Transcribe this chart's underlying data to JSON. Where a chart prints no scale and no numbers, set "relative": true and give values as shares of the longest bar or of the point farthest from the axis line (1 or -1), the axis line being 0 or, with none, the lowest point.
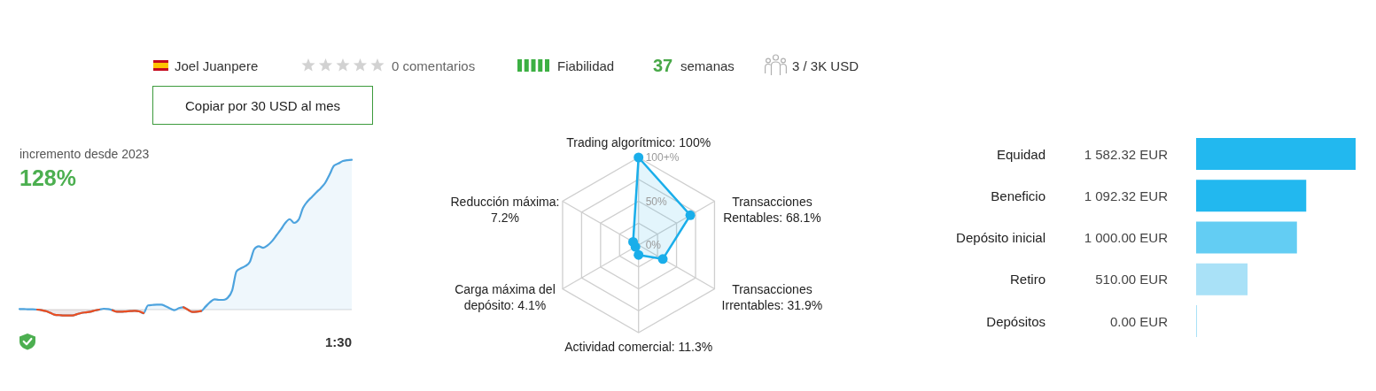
{
  "chart_data": [
    {
      "type": "other",
      "annotations": [
        "Joel Juanpere",
        "0 comentarios",
        "Fiabilidad",
        "37",
        "semanas",
        "3 / 3K USD",
        "Copiar por 30 USD al mes"
      ]
    },
    {
      "type": "line",
      "title": "incremento desde 2023",
      "subtitle": "128%",
      "annotations": [
        "1:30"
      ],
      "relative": true,
      "tick_labels": false,
      "categories": [
        null,
        null,
        null,
        null,
        null,
        null,
        null,
        null,
        null,
        null,
        null,
        null,
        null,
        null,
        null,
        null,
        null,
        null,
        null,
        null,
        null,
        null,
        null,
        null,
        null,
        null,
        null,
        null,
        null,
        null,
        null,
        null,
        null,
        null,
        null,
        null,
        null,
        null,
        null,
        null,
        null,
        null,
        null,
        null,
        null,
        null,
        null,
        null,
        null,
        null,
        null,
        null,
        null,
        null,
        null,
        null,
        null,
        null,
        null,
        null,
        null,
        null,
        null,
        null,
        null,
        null,
        null,
        null,
        null,
        null,
        null,
        null,
        null,
        null,
        null,
        null
      ],
      "series": [
        {
          "type": "area",
          "color": "#4da3de",
          "values": [
            0.004,
            0.004,
            0.002,
            0.002,
            0,
            -0.004,
            -0.01,
            -0.022,
            -0.035,
            -0.037,
            -0.039,
            -0.039,
            -0.039,
            -0.03,
            -0.022,
            -0.018,
            -0.014,
            -0.006,
            0,
            0.006,
            0.004,
            -0.004,
            -0.014,
            -0.014,
            -0.012,
            -0.01,
            -0.008,
            -0.012,
            -0.024,
            0.028,
            0.031,
            0.033,
            0.033,
            0.022,
            0.008,
            -0.004,
            0.01,
            0.016,
            0,
            -0.016,
            -0.014,
            -0.01,
            0.02,
            0.049,
            0.069,
            0.065,
            0.065,
            0.079,
            0.128,
            0.256,
            0.276,
            0.291,
            0.319,
            0.404,
            0.423,
            0.413,
            0.429,
            0.457,
            0.496,
            0.535,
            0.579,
            0.604,
            0.579,
            0.6,
            0.679,
            0.722,
            0.752,
            0.783,
            0.811,
            0.846,
            0.902,
            0.961,
            0.976,
            0.992,
            0.998,
            1
          ]
        },
        {
          "type": "area",
          "color": "#ec4e20",
          "values": [
            null,
            null,
            null,
            null,
            0,
            -0.004,
            -0.01,
            -0.022,
            -0.035,
            -0.037,
            -0.039,
            -0.039,
            -0.039,
            -0.03,
            -0.022,
            -0.018,
            -0.014,
            -0.006,
            0,
            null,
            null,
            -0.004,
            -0.014,
            -0.014,
            -0.012,
            -0.01,
            -0.008,
            -0.012,
            -0.024,
            null,
            null,
            null,
            null,
            null,
            null,
            null,
            null,
            0.016,
            0,
            -0.016,
            -0.014,
            -0.01,
            null,
            null,
            null,
            null,
            null,
            null,
            null,
            null,
            null,
            null,
            null,
            null,
            null,
            null,
            null,
            null,
            null,
            null,
            null,
            null,
            null,
            null,
            null,
            null,
            null,
            null,
            null,
            null,
            null,
            null,
            null,
            null,
            null,
            null
          ]
        }
      ]
    },
    {
      "type": "radar",
      "categories": [
        "Trading algorítmico: 100%",
        "Transacciones Rentables: 68.1%",
        "Transacciones Irrentables: 31.9%",
        "Actividad comercial: 11.3%",
        "Carga máxima del depósito: 4.1%",
        "Reducción máxima: 7.2%"
      ],
      "series": [
        {
          "color": "#1aaeea",
          "values": [
            100,
            68.1,
            31.9,
            11.3,
            4.1,
            7.2
          ]
        }
      ],
      "ylim": [
        0,
        100
      ],
      "yticks": [
        {
          "value": 0,
          "label": "0%"
        },
        {
          "value": 50,
          "label": "50%"
        },
        {
          "value": 100,
          "label": "100+%"
        }
      ],
      "grid": true,
      "marker": "circle"
    },
    {
      "type": "bar",
      "orientation": "horizontal",
      "categories": [
        "Equidad",
        "Beneficio",
        "Depósito inicial",
        "Retiro",
        "Depósitos"
      ],
      "values": [
        1582.32,
        1092.32,
        1000,
        510,
        0
      ],
      "colors": [
        "#22b8ef",
        "#22b8ef",
        "#63cdf3",
        "#a9e1f7",
        "#a9e1f7"
      ],
      "value_labels": [
        "1 582.32 EUR",
        "1 092.32 EUR",
        "1 000.00 EUR",
        "510.00 EUR",
        "0.00 EUR"
      ],
      "xlim": [
        0,
        1582.32
      ],
      "tick_labels": "y"
    }
  ]
}
